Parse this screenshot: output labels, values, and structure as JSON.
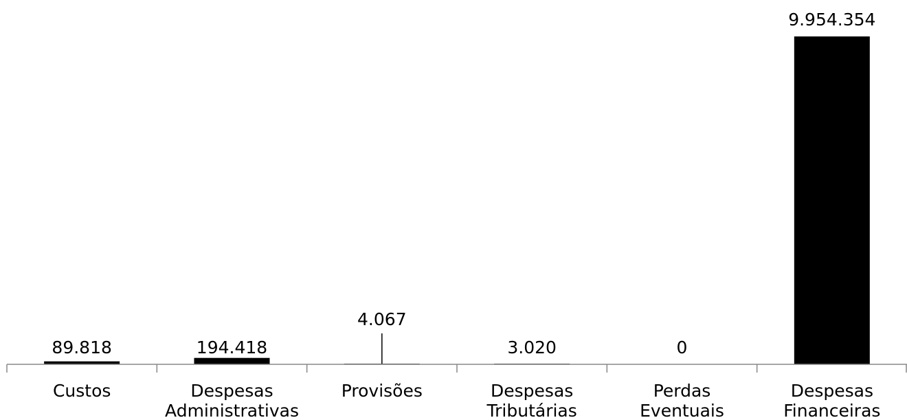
{
  "chart_data": {
    "type": "bar",
    "title": "",
    "xlabel": "",
    "ylabel": "",
    "categories": [
      [
        "Custos"
      ],
      [
        "Despesas",
        "Administrativas"
      ],
      [
        "Provisões"
      ],
      [
        "Despesas",
        "Tributárias"
      ],
      [
        "Perdas",
        "Eventuais"
      ],
      [
        "Despesas",
        "Financeiras"
      ]
    ],
    "values": [
      89818,
      194418,
      4067,
      3020,
      0,
      9954354
    ],
    "value_labels": [
      "89.818",
      "194.418",
      "4.067",
      "3.020",
      "0",
      "9.954.354"
    ],
    "ylim": [
      0,
      9954354
    ],
    "grid": false,
    "legend": "none",
    "colors": {
      "bar": "#000000",
      "axis": "#888888",
      "text": "#000000"
    }
  }
}
